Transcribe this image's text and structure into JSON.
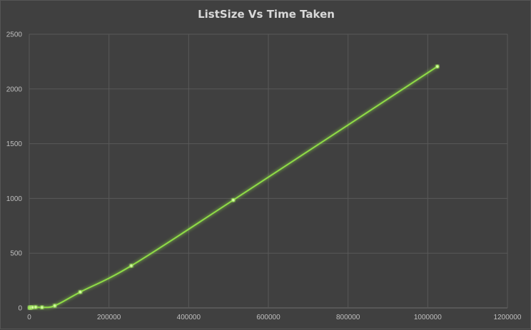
{
  "chart_data": {
    "type": "scatter",
    "title": "ListSize Vs Time Taken",
    "xlabel": "",
    "ylabel": "",
    "xlim": [
      0,
      1200000
    ],
    "ylim": [
      0,
      2500
    ],
    "xticks": [
      "0",
      "200000",
      "400000",
      "600000",
      "800000",
      "1000000",
      "1200000"
    ],
    "yticks": [
      "0",
      "500",
      "1000",
      "1500",
      "2000",
      "2500"
    ],
    "grid": true,
    "legend": "none",
    "smooth_line": true,
    "series": [
      {
        "color": "#8fdc46",
        "x": [
          1000,
          2000,
          4000,
          8000,
          16000,
          32000,
          64000,
          128000,
          256000,
          512000,
          1024000
        ],
        "y": [
          2,
          3,
          3,
          5,
          7,
          5,
          20,
          145,
          385,
          985,
          2205
        ]
      }
    ]
  }
}
